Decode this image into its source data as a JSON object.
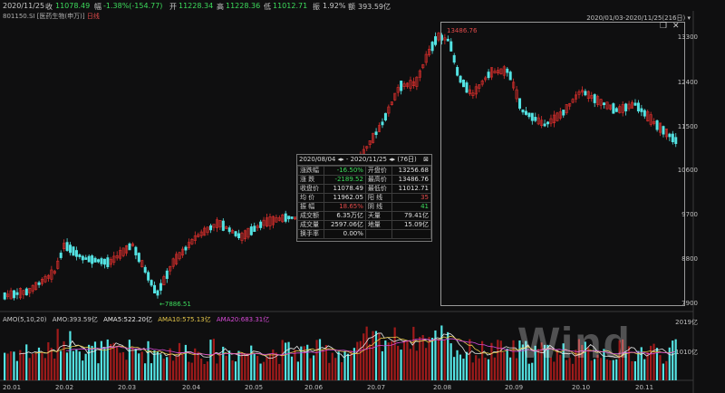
{
  "top_bar": {
    "date": "2020/11/25",
    "close_label": "收",
    "close_value": "11078.49",
    "change_label": "幅",
    "change_value": "-1.38%(-154.77)",
    "open_label": "开",
    "open_value": "11228.34",
    "high_label": "高",
    "high_value": "11228.36",
    "low_label": "低",
    "low_value": "11012.71",
    "amp_label": "振",
    "amp_value": "1.92%",
    "amount_label": "额",
    "amount_value": "393.59亿"
  },
  "sub_bar": {
    "code": "801150.SI",
    "name": "[医药生物(申万)]",
    "period": "日线"
  },
  "range_label": "2020/01/03-2020/11/25(216日)",
  "markers": {
    "high": "13486.76",
    "low": "7886.51"
  },
  "stats": {
    "title": "2020/08/04 ◂▸ - 2020/11/25 ◂▸   (76日)",
    "close_icon": "⊠",
    "rows": [
      [
        "涨跌幅",
        "-16.50%",
        "开盘价",
        "13256.68"
      ],
      [
        "涨 跌",
        "-2189.52",
        "最高价",
        "13486.76"
      ],
      [
        "收盘价",
        "11078.49",
        "最低价",
        "11012.71"
      ],
      [
        "均 价",
        "11962.05",
        "阳 线",
        "35"
      ],
      [
        "振 幅",
        "18.65%",
        "阴 线",
        "41"
      ],
      [
        "成交额",
        "6.35万亿",
        "天量",
        "79.41亿"
      ],
      [
        "成交量",
        "2597.06亿",
        "地量",
        "15.09亿"
      ],
      [
        "换手率",
        "0.00%",
        "",
        ""
      ]
    ]
  },
  "y_axis": [
    "13300",
    "12400",
    "11500",
    "10600",
    "9700",
    "8800",
    "7900"
  ],
  "vol_axis": [
    "2019亿",
    "1010亿"
  ],
  "x_axis": [
    "20.01",
    "20.02",
    "20.03",
    "20.04",
    "20.05",
    "20.06",
    "20.07",
    "20.08",
    "20.09",
    "20.10",
    "20.11"
  ],
  "volume_bar": {
    "title": "AMO(5,10,20)",
    "amo": "AMO:393.59亿",
    "ama5": "AMA5:522.20亿",
    "ama10": "AMA10:575.13亿",
    "ama20": "AMA20:683.31亿"
  },
  "watermark": "Wind",
  "colors": {
    "up": "#e0302d",
    "down": "#54e4e4",
    "ma5": "#e8e8e8",
    "ma10": "#e6c84a",
    "ma20": "#d64ad6"
  }
}
